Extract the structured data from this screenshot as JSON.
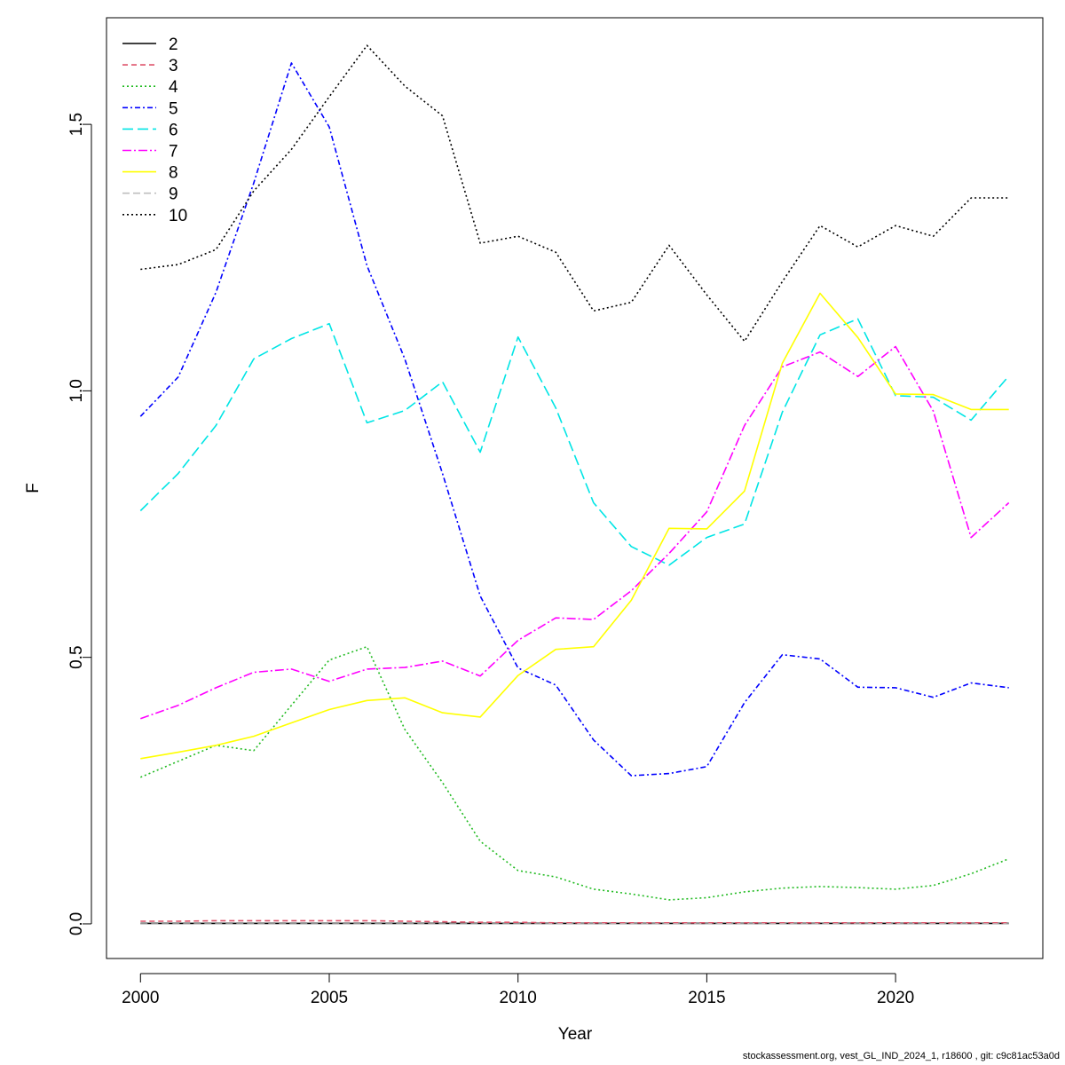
{
  "chart_data": {
    "type": "line",
    "title": "",
    "xlabel": "Year",
    "ylabel": "F",
    "xlim": [
      1999.1,
      2023.9
    ],
    "ylim": [
      -0.065,
      1.7
    ],
    "x_ticks": [
      2000,
      2005,
      2010,
      2015,
      2020
    ],
    "y_ticks": [
      0.0,
      0.5,
      1.0,
      1.5
    ],
    "y_tick_labels": [
      "0.0",
      "0.5",
      "1.0",
      "1.5"
    ],
    "grid": false,
    "legend_position": "top-left",
    "x": [
      2000,
      2001,
      2002,
      2003,
      2004,
      2005,
      2006,
      2007,
      2008,
      2009,
      2010,
      2011,
      2012,
      2013,
      2014,
      2015,
      2016,
      2017,
      2018,
      2019,
      2020,
      2021,
      2022,
      2023
    ],
    "series": [
      {
        "name": "2",
        "color": "#000000",
        "dash": "",
        "values": [
          0.001,
          0.001,
          0.001,
          0.001,
          0.001,
          0.001,
          0.001,
          0.001,
          0.001,
          0.001,
          0.001,
          0.001,
          0.001,
          0.001,
          0.001,
          0.001,
          0.001,
          0.001,
          0.001,
          0.001,
          0.001,
          0.001,
          0.001,
          0.001
        ]
      },
      {
        "name": "3",
        "color": "#DF536B",
        "dash": "6,4",
        "values": [
          0.005,
          0.005,
          0.006,
          0.006,
          0.006,
          0.006,
          0.006,
          0.005,
          0.004,
          0.003,
          0.003,
          0.002,
          0.002,
          0.002,
          0.002,
          0.002,
          0.002,
          0.002,
          0.002,
          0.002,
          0.002,
          0.002,
          0.002,
          0.002
        ]
      },
      {
        "name": "4",
        "color": "#22BB22",
        "dash": "2,3",
        "values": [
          0.275,
          0.305,
          0.335,
          0.325,
          0.41,
          0.495,
          0.52,
          0.365,
          0.265,
          0.155,
          0.1,
          0.088,
          0.065,
          0.056,
          0.045,
          0.049,
          0.06,
          0.067,
          0.07,
          0.068,
          0.065,
          0.072,
          0.094,
          0.122
        ]
      },
      {
        "name": "5",
        "color": "#0000FF",
        "dash": "6,3,2,3",
        "values": [
          0.952,
          1.026,
          1.185,
          1.39,
          1.615,
          1.495,
          1.235,
          1.06,
          0.845,
          0.615,
          0.48,
          0.448,
          0.345,
          0.278,
          0.282,
          0.295,
          0.415,
          0.505,
          0.497,
          0.444,
          0.443,
          0.425,
          0.452,
          0.443
        ]
      },
      {
        "name": "6",
        "color": "#00E5E5",
        "dash": "12,5",
        "values": [
          0.775,
          0.845,
          0.935,
          1.06,
          1.098,
          1.126,
          0.94,
          0.963,
          1.017,
          0.885,
          1.101,
          0.968,
          0.79,
          0.708,
          0.673,
          0.725,
          0.75,
          0.96,
          1.105,
          1.135,
          0.991,
          0.988,
          0.945,
          1.028
        ]
      },
      {
        "name": "7",
        "color": "#FF00FF",
        "dash": "10,3,2,3",
        "values": [
          0.385,
          0.41,
          0.443,
          0.472,
          0.478,
          0.455,
          0.478,
          0.481,
          0.493,
          0.465,
          0.532,
          0.574,
          0.571,
          0.625,
          0.695,
          0.773,
          0.935,
          1.045,
          1.073,
          1.027,
          1.083,
          0.962,
          0.725,
          0.79
        ]
      },
      {
        "name": "8",
        "color": "#FFFF00",
        "dash": "",
        "values": [
          0.31,
          0.322,
          0.335,
          0.352,
          0.377,
          0.402,
          0.419,
          0.424,
          0.396,
          0.388,
          0.466,
          0.515,
          0.52,
          0.607,
          0.742,
          0.741,
          0.812,
          1.052,
          1.183,
          1.1,
          0.994,
          0.993,
          0.965,
          0.965
        ]
      },
      {
        "name": "9",
        "color": "#BEBEBE",
        "dash": "8,4",
        "values": [
          0.0,
          0.0,
          0.0,
          0.0,
          0.0,
          0.0,
          0.0,
          0.0,
          0.0,
          0.0,
          0.0,
          0.0,
          0.0,
          0.0,
          0.0,
          0.0,
          0.0,
          0.0,
          0.0,
          0.0,
          0.0,
          0.0,
          0.0,
          0.0
        ]
      },
      {
        "name": "10",
        "color": "#000000",
        "dash": "2,3",
        "values": [
          1.228,
          1.237,
          1.265,
          1.375,
          1.453,
          1.552,
          1.648,
          1.572,
          1.516,
          1.277,
          1.29,
          1.26,
          1.15,
          1.166,
          1.273,
          1.18,
          1.093,
          1.205,
          1.31,
          1.27,
          1.31,
          1.29,
          1.362,
          1.362
        ]
      }
    ]
  },
  "footer": "stockassessment.org, vest_GL_IND_2024_1, r18600 , git: c9c81ac53a0d"
}
